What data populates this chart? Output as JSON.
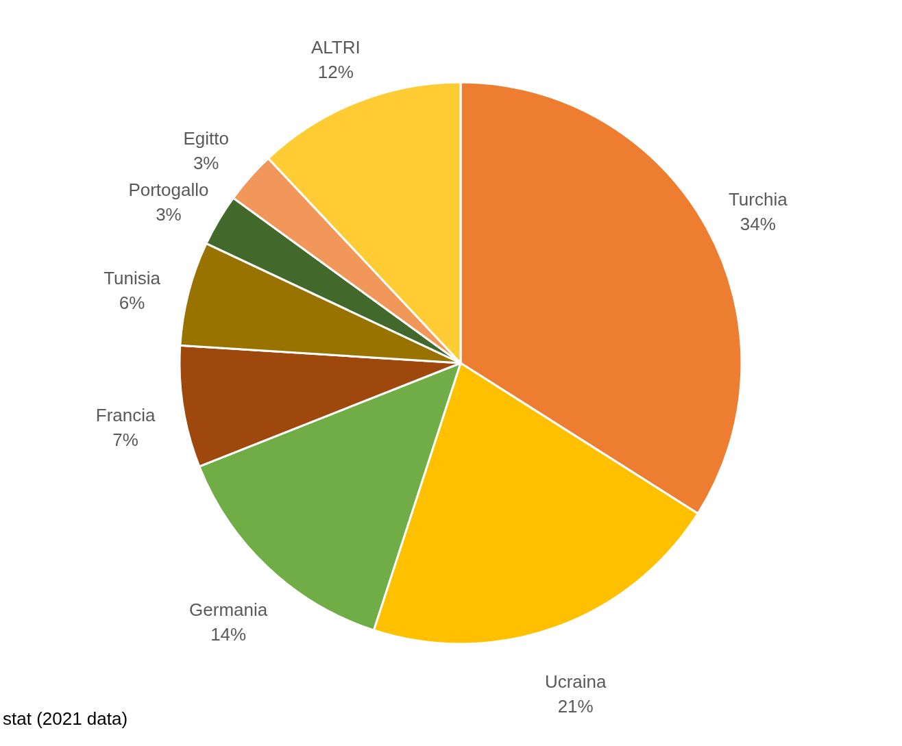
{
  "chart_data": {
    "type": "pie",
    "categories": [
      "Turchia",
      "Ucraina",
      "Germania",
      "Francia",
      "Tunisia",
      "Portogallo",
      "Egitto",
      "ALTRI"
    ],
    "values": [
      34,
      21,
      14,
      7,
      6,
      3,
      3,
      12
    ],
    "value_labels": [
      "34%",
      "21%",
      "14%",
      "7%",
      "6%",
      "3%",
      "3%",
      "12%"
    ],
    "colors": [
      "#ed7d31",
      "#ffc000",
      "#70ad47",
      "#9e480e",
      "#997300",
      "#43682b",
      "#f1975a",
      "#ffcd33"
    ],
    "annotations": [
      "stat (2021 data)"
    ]
  }
}
